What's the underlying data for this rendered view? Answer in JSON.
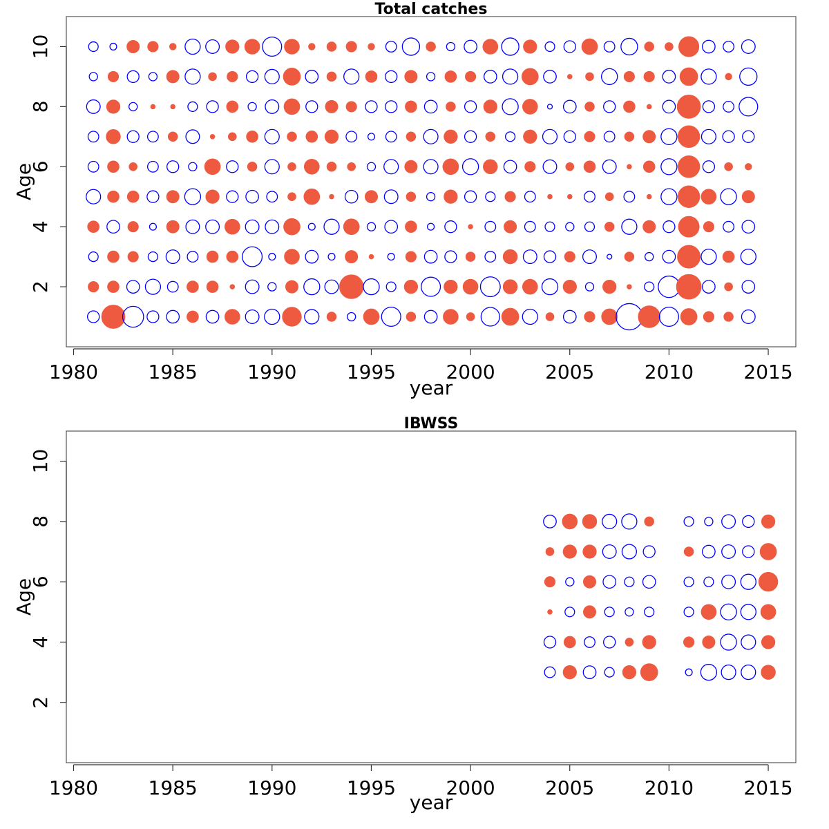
{
  "colors": {
    "positive": "#EE5A40",
    "negative": "#0000FF"
  },
  "chart_data": [
    {
      "type": "scatter",
      "subtype": "bubble-residuals",
      "title": "Total catches",
      "xlabel": "year",
      "ylabel": "Age",
      "xlim": [
        1980,
        2016
      ],
      "ylim": [
        0,
        11
      ],
      "xticks": [
        1980,
        1985,
        1990,
        1995,
        2000,
        2005,
        2010,
        2015
      ],
      "yticks": [
        2,
        4,
        6,
        8,
        10
      ],
      "years": [
        1981,
        1982,
        1983,
        1984,
        1985,
        1986,
        1987,
        1988,
        1989,
        1990,
        1991,
        1992,
        1993,
        1994,
        1995,
        1996,
        1997,
        1998,
        1999,
        2000,
        2001,
        2002,
        2003,
        2004,
        2005,
        2006,
        2007,
        2008,
        2009,
        2010,
        2011,
        2012,
        2013,
        2014
      ],
      "ages": [
        1,
        2,
        3,
        4,
        5,
        6,
        7,
        8,
        9,
        10
      ],
      "residuals_by_age": [
        [
          -0.6,
          2.4,
          -1.9,
          -0.6,
          -0.7,
          0.6,
          -0.7,
          1.0,
          -0.8,
          -1.0,
          1.6,
          -0.9,
          0.4,
          -0.3,
          1.1,
          -1.6,
          0.4,
          -0.7,
          1.0,
          0.3,
          -1.5,
          1.3,
          -1.0,
          0.3,
          -0.7,
          0.5,
          1.1,
          -3.0,
          2.1,
          -1.6,
          1.2,
          0.5,
          0.4,
          -0.8
        ],
        [
          0.5,
          0.6,
          -0.7,
          -1.0,
          -0.5,
          0.6,
          0.6,
          0.1,
          -0.8,
          -0.3,
          0.7,
          -1.1,
          -0.8,
          2.5,
          -1.1,
          -0.4,
          0.8,
          -1.6,
          0.8,
          1.0,
          -1.7,
          0.9,
          1.0,
          -1.1,
          0.8,
          -0.3,
          0.8,
          0.1,
          -0.4,
          -2.0,
          2.7,
          -0.7,
          0.3,
          -0.7
        ],
        [
          -0.4,
          0.6,
          0.5,
          -0.4,
          -0.8,
          -0.5,
          0.6,
          0.6,
          -1.7,
          -0.2,
          1.0,
          -0.7,
          -0.2,
          0.7,
          0.1,
          -0.2,
          0.5,
          -0.7,
          -0.6,
          0.4,
          -0.5,
          0.9,
          -0.8,
          -0.6,
          0.5,
          -0.8,
          -0.1,
          0.4,
          -0.3,
          -0.7,
          2.3,
          -1.0,
          0.6,
          -1.0
        ],
        [
          0.6,
          -0.7,
          0.5,
          -0.2,
          0.7,
          -0.8,
          -0.8,
          1.0,
          -0.8,
          -0.8,
          1.2,
          -0.2,
          -1.0,
          1.1,
          -0.3,
          -0.7,
          0.6,
          -0.2,
          -0.6,
          0.1,
          -0.5,
          0.7,
          -0.5,
          -0.4,
          -0.3,
          -0.4,
          0.4,
          -1.0,
          0.7,
          -0.6,
          1.9,
          0.5,
          -0.5,
          -0.7
        ],
        [
          -0.9,
          0.6,
          0.6,
          -0.6,
          0.7,
          -1.1,
          0.8,
          -0.6,
          -0.7,
          -0.5,
          0.3,
          1.1,
          0.1,
          -0.7,
          0.7,
          -0.8,
          0.4,
          -0.3,
          0.8,
          -0.6,
          -0.4,
          0.5,
          -0.5,
          0.1,
          0.1,
          -0.5,
          0.3,
          -0.5,
          0.1,
          -1.1,
          2.1,
          1.0,
          -1.1,
          0.7
        ],
        [
          -0.5,
          0.6,
          0.3,
          -0.5,
          -0.6,
          -0.3,
          1.1,
          -0.6,
          0.4,
          -0.9,
          0.3,
          1.0,
          0.4,
          0.3,
          -0.3,
          -0.9,
          0.7,
          -0.9,
          1.1,
          -1.1,
          0.9,
          -0.7,
          0.5,
          -0.8,
          0.3,
          0.6,
          -0.8,
          0.1,
          0.6,
          -1.1,
          2.1,
          -0.6,
          0.3,
          0.2
        ],
        [
          -0.5,
          0.9,
          -0.6,
          -0.5,
          0.4,
          -0.8,
          0.1,
          0.3,
          0.6,
          -0.9,
          0.4,
          0.6,
          0.8,
          -0.5,
          -0.2,
          -0.5,
          0.4,
          -0.9,
          0.8,
          -0.6,
          0.4,
          -0.4,
          0.8,
          -0.9,
          -0.6,
          0.5,
          -0.5,
          0.4,
          0.7,
          -1.1,
          2.1,
          -0.9,
          -0.6,
          -0.6
        ],
        [
          -0.8,
          0.8,
          -0.3,
          0.1,
          0.1,
          -0.4,
          -0.6,
          0.6,
          -0.3,
          -0.8,
          1.1,
          -0.6,
          0.7,
          0.5,
          -0.6,
          -0.6,
          0.6,
          -0.7,
          0.4,
          -0.6,
          0.8,
          -1.1,
          1.0,
          -0.1,
          -0.7,
          0.4,
          -0.6,
          0.6,
          0.1,
          -0.7,
          2.4,
          -0.6,
          -0.5,
          -1.5
        ],
        [
          -0.3,
          0.5,
          -0.6,
          -0.3,
          0.7,
          -1.0,
          0.3,
          0.5,
          -0.6,
          -0.9,
          1.3,
          -0.7,
          0.4,
          -1.0,
          0.6,
          -0.6,
          0.7,
          -0.3,
          0.6,
          0.5,
          -0.7,
          -1.0,
          1.2,
          -0.7,
          0.1,
          0.3,
          -1.1,
          0.5,
          0.5,
          -0.7,
          1.4,
          -1.0,
          0.2,
          -1.3
        ],
        [
          -0.4,
          -0.2,
          0.7,
          0.5,
          0.2,
          -1.0,
          -0.8,
          0.8,
          1.0,
          -1.6,
          1.0,
          0.2,
          0.4,
          0.5,
          0.2,
          -0.5,
          -1.3,
          0.4,
          -0.3,
          -0.7,
          1.0,
          -1.3,
          0.8,
          -0.4,
          -0.6,
          1.1,
          -0.5,
          -1.2,
          0.4,
          0.3,
          1.8,
          -0.7,
          -0.5,
          -0.8
        ]
      ]
    },
    {
      "type": "scatter",
      "subtype": "bubble-residuals",
      "title": "IBWSS",
      "xlabel": "year",
      "ylabel": "Age",
      "xlim": [
        1980,
        2016
      ],
      "ylim": [
        0,
        11
      ],
      "xticks": [
        1980,
        1985,
        1990,
        1995,
        2000,
        2005,
        2010,
        2015
      ],
      "yticks": [
        2,
        4,
        6,
        8,
        10
      ],
      "years": [
        2004,
        2005,
        2006,
        2007,
        2008,
        2009,
        2011,
        2012,
        2013,
        2014,
        2015
      ],
      "ages": [
        3,
        4,
        5,
        6,
        7,
        8
      ],
      "residuals_by_age": [
        [
          -0.5,
          0.8,
          -0.7,
          -0.4,
          0.8,
          1.3,
          -0.2,
          -1.1,
          -0.9,
          -0.9,
          0.9
        ],
        [
          -0.6,
          0.6,
          -0.5,
          -0.6,
          0.3,
          0.8,
          0.5,
          0.7,
          -1.1,
          -0.9,
          0.8
        ],
        [
          0.1,
          -0.4,
          0.7,
          -0.4,
          -0.3,
          -0.4,
          -0.4,
          1.0,
          -1.1,
          -1.0,
          1.0
        ],
        [
          0.5,
          -0.3,
          0.7,
          -0.7,
          -0.4,
          -0.7,
          -0.4,
          -0.4,
          -0.8,
          -1.0,
          1.6
        ],
        [
          0.3,
          0.8,
          0.8,
          -0.8,
          -0.9,
          -0.6,
          0.4,
          -0.7,
          -0.8,
          -0.6,
          1.2
        ],
        [
          -0.7,
          1.0,
          0.9,
          -0.9,
          -1.0,
          0.4,
          -0.4,
          -0.3,
          -0.8,
          -0.6,
          0.8
        ]
      ]
    }
  ]
}
